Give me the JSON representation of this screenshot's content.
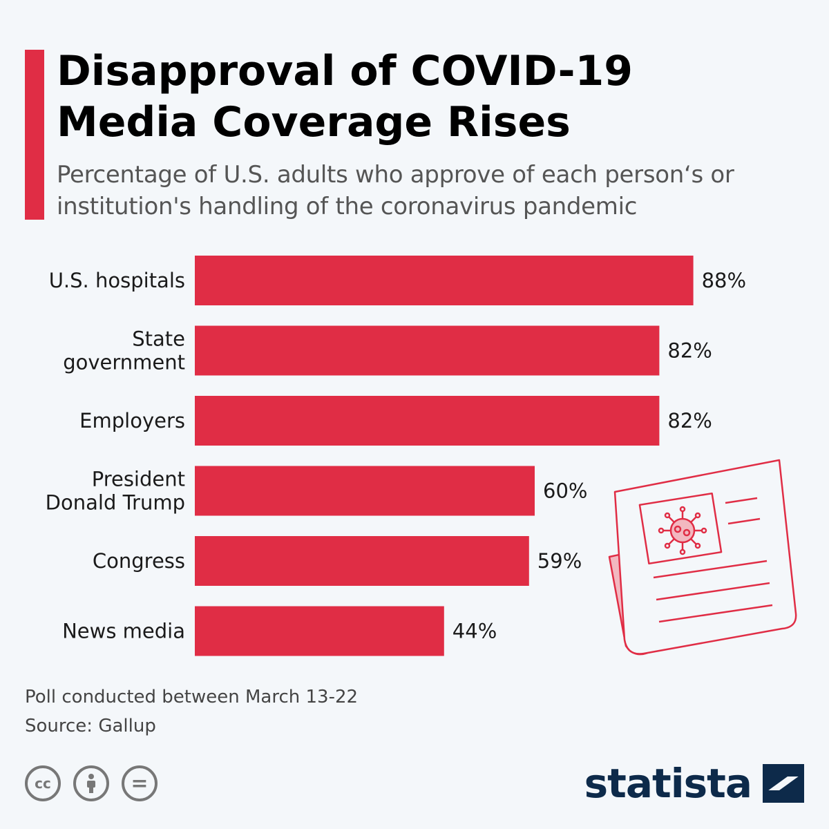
{
  "colors": {
    "accent": "#e02d45",
    "brand": "#0d2a4a",
    "newspaper": "#e02d45"
  },
  "header": {
    "title_line1": "Disapproval of COVID-19",
    "title_line2": "Media Coverage Rises",
    "subtitle_line1": "Percentage of U.S. adults who approve of each person‘s or",
    "subtitle_line2": "institution's handling of the coronavirus pandemic"
  },
  "chart_data": {
    "type": "bar",
    "orientation": "horizontal",
    "categories": [
      [
        "U.S. hospitals"
      ],
      [
        "State",
        "government"
      ],
      [
        "Employers"
      ],
      [
        "President",
        "Donald Trump"
      ],
      [
        "Congress"
      ],
      [
        "News media"
      ]
    ],
    "values": [
      88,
      82,
      82,
      60,
      59,
      44
    ],
    "value_labels": [
      "88%",
      "82%",
      "82%",
      "60%",
      "59%",
      "44%"
    ],
    "xlim": [
      0,
      100
    ],
    "unit": "%",
    "grid": false,
    "legend": "none"
  },
  "footer": {
    "note": "Poll conducted between March 13-22",
    "source": "Source: Gallup"
  },
  "license_icons": [
    "cc-icon",
    "attribution-icon",
    "no-derivatives-icon"
  ],
  "license": {
    "cc_glyph": "cc",
    "nd_glyph": "="
  },
  "brand": {
    "name": "statista",
    "logo_icon": "statista-logo-icon"
  },
  "illustration": {
    "icon": "newspaper-virus-icon"
  }
}
